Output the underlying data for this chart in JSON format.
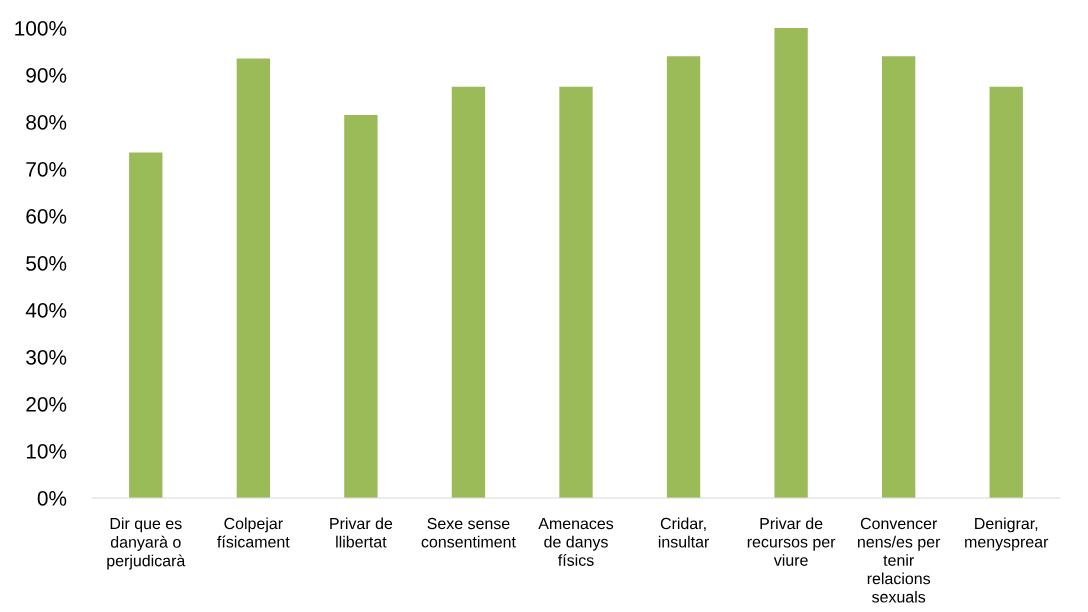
{
  "chart_data": {
    "type": "bar",
    "categories": [
      "Dir que es\ndanyarà o\nperjudicarà",
      "Colpejar\nfísicament",
      "Privar de\nllibertat",
      "Sexe sense\nconsentiment",
      "Amenaces\nde danys\nfísics",
      "Cridar,\ninsultar",
      "Privar de\nrecursos per\nviure",
      "Convencer\nnens/es per\ntenir\nrelacions\nsexuals",
      "Denigrar,\nmenysprear"
    ],
    "values": [
      73.5,
      93.5,
      81.5,
      87.5,
      87.5,
      94,
      100,
      94,
      87.5
    ],
    "color": "#9bbb59",
    "ylim": [
      0,
      100
    ],
    "yticks": [
      {
        "value": 0,
        "label": "0%"
      },
      {
        "value": 10,
        "label": "10%"
      },
      {
        "value": 20,
        "label": "20%"
      },
      {
        "value": 30,
        "label": "30%"
      },
      {
        "value": 40,
        "label": "40%"
      },
      {
        "value": 50,
        "label": "50%"
      },
      {
        "value": 60,
        "label": "60%"
      },
      {
        "value": 70,
        "label": "70%"
      },
      {
        "value": 80,
        "label": "80%"
      },
      {
        "value": 90,
        "label": "90%"
      },
      {
        "value": 100,
        "label": "100%"
      }
    ],
    "grid": false
  }
}
